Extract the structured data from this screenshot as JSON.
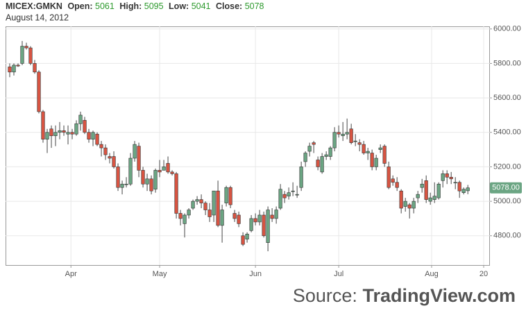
{
  "header": {
    "symbol": "MICEX:GMKN",
    "labels": [
      "Open:",
      "High:",
      "Low:",
      "Close:"
    ],
    "date": "August 14, 2012"
  },
  "source": {
    "prefix": "Source:",
    "brand": "TradingView.com"
  },
  "chart_data": {
    "type": "candlestick",
    "categories": [
      null,
      null,
      null,
      null,
      null,
      null,
      null,
      null,
      null,
      null,
      null,
      null,
      null,
      null,
      null,
      null,
      null,
      null,
      null,
      null,
      null,
      null,
      null,
      null,
      null,
      null,
      null,
      null,
      null,
      null,
      null,
      null,
      null,
      null,
      null,
      null,
      null,
      null,
      null,
      null,
      null,
      null,
      null,
      null,
      null,
      null,
      null,
      null,
      null,
      null,
      null,
      null,
      null,
      null,
      null,
      null,
      null,
      null,
      null,
      null,
      null,
      null,
      null,
      null,
      null,
      null,
      null,
      null,
      null,
      null,
      null,
      null,
      null,
      null,
      null,
      null,
      null,
      null,
      null,
      null,
      null,
      null,
      null,
      null,
      null,
      null,
      null,
      null,
      null,
      null,
      null,
      null,
      null,
      null,
      null,
      null,
      null,
      null,
      null,
      null,
      null,
      null,
      null,
      null,
      null,
      null,
      null,
      null,
      null,
      null,
      null
    ],
    "open": [
      5780,
      5750,
      5790,
      5800,
      5900,
      5890,
      5800,
      5750,
      5520,
      5360,
      5420,
      5380,
      5400,
      5410,
      5390,
      5400,
      5390,
      5450,
      5470,
      5400,
      5360,
      5390,
      5330,
      5310,
      5260,
      5260,
      5200,
      5080,
      5100,
      5100,
      5250,
      5320,
      5180,
      5100,
      5130,
      5070,
      5180,
      5180,
      5220,
      5170,
      5160,
      4930,
      4870,
      4920,
      4960,
      5000,
      5010,
      4990,
      4950,
      4920,
      5060,
      4860,
      4990,
      5080,
      4930,
      4920,
      4800,
      4780,
      4830,
      4900,
      4880,
      4920,
      4760,
      4920,
      4900,
      4960,
      5040,
      5030,
      5060,
      5040,
      5080,
      5230,
      5290,
      5340,
      5240,
      5170,
      5260,
      5260,
      5310,
      5400,
      5380,
      5390,
      5420,
      5350,
      5340,
      5330,
      5280,
      5280,
      5200,
      5300,
      5320,
      5200,
      5130,
      5110,
      5060,
      4970,
      4980,
      4960,
      5020,
      5080,
      5120,
      5000,
      5010,
      5020,
      5120,
      5160,
      5140,
      5110,
      5110,
      5050,
      5061
    ],
    "high": [
      5800,
      5800,
      5800,
      5930,
      5920,
      5900,
      5820,
      5760,
      5530,
      5420,
      5440,
      5440,
      5460,
      5440,
      5440,
      5420,
      5470,
      5520,
      5490,
      5420,
      5410,
      5400,
      5350,
      5330,
      5280,
      5290,
      5220,
      5120,
      5140,
      5280,
      5350,
      5340,
      5200,
      5160,
      5150,
      5190,
      5240,
      5240,
      5260,
      5180,
      5170,
      4950,
      4930,
      4960,
      5010,
      5030,
      5040,
      5000,
      4990,
      5050,
      5120,
      4980,
      5090,
      5090,
      4950,
      4940,
      4820,
      4820,
      4920,
      4930,
      4950,
      4940,
      4970,
      4960,
      4970,
      5100,
      5060,
      5080,
      5110,
      5090,
      5230,
      5290,
      5340,
      5350,
      5260,
      5280,
      5290,
      5320,
      5430,
      5440,
      5460,
      5480,
      5450,
      5390,
      5360,
      5350,
      5310,
      5300,
      5270,
      5330,
      5330,
      5230,
      5150,
      5140,
      5070,
      5020,
      4990,
      5020,
      5060,
      5130,
      5150,
      5050,
      5110,
      5110,
      5180,
      5180,
      5170,
      5140,
      5120,
      5080,
      5095
    ],
    "low": [
      5720,
      5730,
      5780,
      5790,
      5880,
      5790,
      5740,
      5510,
      5340,
      5280,
      5310,
      5320,
      5360,
      5380,
      5330,
      5360,
      5380,
      5410,
      5390,
      5340,
      5320,
      5320,
      5260,
      5240,
      5220,
      5190,
      5060,
      5040,
      5080,
      5090,
      5230,
      5140,
      5080,
      5060,
      5040,
      5050,
      5140,
      5180,
      5160,
      5150,
      4900,
      4860,
      4790,
      4900,
      4950,
      4980,
      4960,
      4920,
      4880,
      4880,
      4850,
      4760,
      4970,
      4960,
      4880,
      4850,
      4740,
      4760,
      4820,
      4860,
      4860,
      4790,
      4710,
      4880,
      4870,
      4950,
      4990,
      5010,
      5030,
      5020,
      5060,
      5200,
      5260,
      5280,
      5180,
      5160,
      5240,
      5240,
      5290,
      5370,
      5350,
      5360,
      5330,
      5320,
      5290,
      5270,
      5240,
      5180,
      5180,
      5280,
      5200,
      5070,
      5090,
      5060,
      4930,
      4940,
      4900,
      4930,
      4990,
      5050,
      4990,
      4980,
      4990,
      5010,
      5080,
      5100,
      5100,
      5070,
      5020,
      5040,
      5041
    ],
    "close": [
      5750,
      5790,
      5785,
      5900,
      5890,
      5800,
      5750,
      5520,
      5360,
      5400,
      5380,
      5400,
      5410,
      5400,
      5400,
      5390,
      5450,
      5500,
      5400,
      5360,
      5400,
      5330,
      5310,
      5270,
      5250,
      5200,
      5080,
      5100,
      5100,
      5250,
      5330,
      5180,
      5100,
      5130,
      5060,
      5180,
      5170,
      5200,
      5170,
      5160,
      4930,
      4900,
      4920,
      4950,
      5000,
      5010,
      4990,
      4950,
      4910,
      5060,
      4860,
      4950,
      5080,
      4980,
      4900,
      4870,
      4750,
      4810,
      4900,
      4880,
      4920,
      4800,
      4950,
      4900,
      4950,
      5070,
      5020,
      5050,
      5060,
      5040,
      5200,
      5280,
      5320,
      5330,
      5200,
      5260,
      5270,
      5310,
      5400,
      5390,
      5390,
      5400,
      5340,
      5350,
      5330,
      5280,
      5290,
      5200,
      5250,
      5310,
      5220,
      5080,
      5110,
      5080,
      4960,
      5000,
      4960,
      5000,
      5040,
      5100,
      5010,
      5020,
      5030,
      5100,
      5160,
      5140,
      5130,
      5110,
      5060,
      5070,
      5078
    ],
    "close_label": "5078.00",
    "up_color": "#6ba583",
    "down_color": "#d75442",
    "grid": true,
    "xlim": [
      -1,
      115.3
    ],
    "xticks": [
      {
        "value": 14.7,
        "label": "Apr"
      },
      {
        "value": 36,
        "label": "May"
      },
      {
        "value": 59,
        "label": "Jun"
      },
      {
        "value": 79,
        "label": "Jul"
      },
      {
        "value": 101.3,
        "label": "Aug"
      },
      {
        "value": 113.8,
        "label": "20"
      }
    ],
    "ylim": [
      4630,
      6015
    ],
    "yticks": [
      {
        "value": 4800,
        "label": "4800.00"
      },
      {
        "value": 5000,
        "label": "5000.00"
      },
      {
        "value": 5200,
        "label": "5200.00"
      },
      {
        "value": 5400,
        "label": "5400.00"
      },
      {
        "value": 5600,
        "label": "5600.00"
      },
      {
        "value": 5800,
        "label": "5800.00"
      },
      {
        "value": 6000,
        "label": "6000.00"
      }
    ]
  }
}
